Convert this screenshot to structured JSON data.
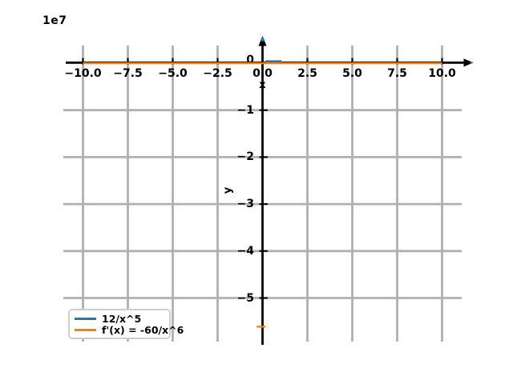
{
  "page": {
    "background": "#ffffff"
  },
  "chart_data": {
    "type": "line",
    "title": "",
    "y_offset_label": "1e7",
    "xlabel": "x",
    "ylabel": "y",
    "grid": true,
    "grid_color": "#b0b0b0",
    "axis_color": "#000000",
    "xlim": [
      -11.1,
      11.6
    ],
    "ylim_scaled_by_1e7": [
      -5.93,
      0.38
    ],
    "x_ticks": [
      -10.0,
      -7.5,
      -5.0,
      -2.5,
      0.0,
      2.5,
      5.0,
      7.5,
      10.0
    ],
    "x_tick_labels": [
      "−10.0",
      "−7.5",
      "−5.0",
      "−2.5",
      "0.0",
      "2.5",
      "5.0",
      "7.5",
      "10.0"
    ],
    "y_ticks_scaled_by_1e7": [
      0,
      -1,
      -2,
      -3,
      -4,
      -5
    ],
    "y_tick_labels": [
      "0",
      "−1",
      "−2",
      "−3",
      "−4",
      "−5"
    ],
    "series": [
      {
        "name": "12/x^5",
        "formula": "f(x) = 12/x^5",
        "color": "#1f77b4",
        "note": "flat at y≈0 over [-10,10] on 1e7 scale; vertical asymptote at x=0 (to +inf for x→0+), clipped at top of axes",
        "visible_traces_xy_1e7": [
          [
            [
              0.16,
              0.042
            ],
            [
              1.05,
              0.042
            ]
          ]
        ]
      },
      {
        "name": "f'(x) = -60/x^6",
        "formula": "f'(x) = -60/x^6",
        "color": "#ff7f0e",
        "note": "flat at y≈0 over [-10,10] on 1e7 scale; vertical asymptote at x=0 (to -inf), clipped at bottom of axes",
        "visible_traces_xy_1e7": [
          [
            [
              -10,
              0
            ],
            [
              10,
              0
            ]
          ],
          [
            [
              -0.33,
              -5.61
            ],
            [
              0.16,
              -5.61
            ]
          ]
        ]
      }
    ],
    "legend": {
      "location": "lower left",
      "entries": [
        {
          "label": "12/x^5",
          "color": "#1f77b4"
        },
        {
          "label": "f'(x) = -60/x^6",
          "color": "#ff7f0e"
        }
      ]
    }
  }
}
